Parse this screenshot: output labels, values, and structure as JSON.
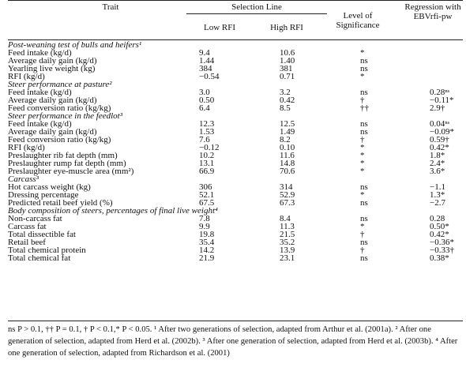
{
  "headers": {
    "trait": "Trait",
    "selection_line": "Selection Line",
    "low_rfi": "Low RFI",
    "high_rfi": "High RFI",
    "significance": "Level of Significance",
    "regression": "Regression with EBVrfi-pw"
  },
  "sections": [
    {
      "title": "Post-weaning test of bulls and heifers¹",
      "rows": [
        {
          "trait": "Feed intake (kg/d)",
          "low": "9.4",
          "high": "10.6",
          "sig": "*",
          "reg": ""
        },
        {
          "trait": "Average daily gain (kg/d)",
          "low": "1.44",
          "high": "1.40",
          "sig": "ns",
          "reg": ""
        },
        {
          "trait": "Yearling live weight (kg)",
          "low": "384",
          "high": "381",
          "sig": "ns",
          "reg": ""
        },
        {
          "trait": "RFI (kg/d)",
          "low": "−0.54",
          "high": "0.71",
          "sig": "*",
          "reg": ""
        }
      ]
    },
    {
      "title": "Steer performance at pasture²",
      "rows": [
        {
          "trait": "Feed intake (kg/d)",
          "low": "3.0",
          "high": "3.2",
          "sig": "ns",
          "reg": "0.28ⁿˢ"
        },
        {
          "trait": "Average daily gain (kg/d)",
          "low": "0.50",
          "high": "0.42",
          "sig": "†",
          "reg": "−0.11*"
        },
        {
          "trait": "Feed conversion ratio (kg/kg)",
          "low": "6.4",
          "high": "8.5",
          "sig": "††",
          "reg": "2.9†"
        }
      ]
    },
    {
      "title": "Steer performance in the feedlot³",
      "rows": [
        {
          "trait": "Feed intake (kg/d)",
          "low": "12.3",
          "high": "12.5",
          "sig": "ns",
          "reg": "0.04ⁿˢ"
        },
        {
          "trait": "Average daily gain (kg/d)",
          "low": "1.53",
          "high": "1.49",
          "sig": "ns",
          "reg": "−0.09*"
        },
        {
          "trait": "Feed conversion ratio (kg/kg)",
          "low": "7.6",
          "high": "8.2",
          "sig": "†",
          "reg": "0.59†"
        },
        {
          "trait": "RFI (kg/d)",
          "low": "−0.12",
          "high": "0.10",
          "sig": "*",
          "reg": "0.42*"
        },
        {
          "trait": "Preslaughter rib fat depth (mm)",
          "low": "10.2",
          "high": "11.6",
          "sig": "*",
          "reg": "1.8*"
        },
        {
          "trait": "Preslaughter rump fat depth (mm)",
          "low": "13.1",
          "high": "14.8",
          "sig": "*",
          "reg": "2.4*"
        },
        {
          "trait": "Preslaughter eye-muscle area (mm²)",
          "low": "66.9",
          "high": "70.6",
          "sig": "*",
          "reg": "3.6*"
        }
      ]
    },
    {
      "title": "Carcass³",
      "rows": [
        {
          "trait": "Hot carcass weight (kg)",
          "low": "306",
          "high": "314",
          "sig": "ns",
          "reg": "−1.1"
        },
        {
          "trait": "Dressing percentage",
          "low": "52.1",
          "high": "52.9",
          "sig": "*",
          "reg": "1.3*"
        },
        {
          "trait": "Predicted retail beef yield (%)",
          "low": "67.5",
          "high": "67.3",
          "sig": "ns",
          "reg": "−2.7"
        }
      ]
    },
    {
      "title": "Body composition of steers, percentages of final live weight⁴",
      "rows": [
        {
          "trait": "Non-carcass fat",
          "low": "7.8",
          "high": "8.4",
          "sig": "ns",
          "reg": "0.28"
        },
        {
          "trait": "Carcass fat",
          "low": "9.9",
          "high": "11.3",
          "sig": "*",
          "reg": "0.50*"
        },
        {
          "trait": "Total dissectible fat",
          "low": "19.8",
          "high": "21.5",
          "sig": "†",
          "reg": "0.42*"
        },
        {
          "trait": "Retail beef",
          "low": "35.4",
          "high": "35.2",
          "sig": "ns",
          "reg": "−0.36*"
        },
        {
          "trait": "Total chemical protein",
          "low": "14.2",
          "high": "13.9",
          "sig": "†",
          "reg": "−0.33†"
        },
        {
          "trait": "Total chemical fat",
          "low": "21.9",
          "high": "23.1",
          "sig": "ns",
          "reg": "0.38*"
        }
      ]
    }
  ],
  "footnote": "ns P > 0.1, †† P = 0.1, † P < 0.1,* P < 0.05. ¹ After two generations of selection, adapted from Arthur et al. (2001a). ² After one generation of selection, adapted from Herd et al. (2002b). ³ After one generation of selection, adapted from Herd et al. (2003b). ⁴ After one generation of selection, adapted from Richardson et al. (2001)"
}
